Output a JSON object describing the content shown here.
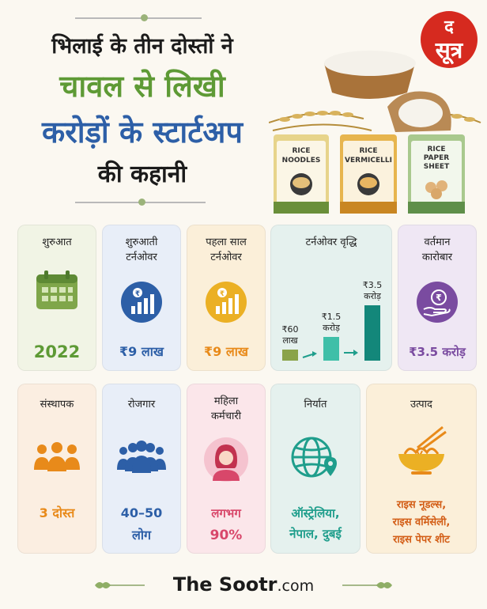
{
  "header": {
    "title_line1": "भिलाई के तीन दोस्तों ने",
    "title_line2": "चावल से लिखी",
    "title_line3": "करोड़ों के स्टार्टअप",
    "title_line4": "की कहानी"
  },
  "logo": {
    "line1": "द",
    "line2": "सूत्र"
  },
  "packs": [
    {
      "line1": "RICE",
      "line2": "NOODLES"
    },
    {
      "line1": "RICE",
      "line2": "VERMICELLI"
    },
    {
      "line1": "RICE",
      "line2": "PAPER",
      "line3": "SHEET"
    }
  ],
  "cards_row1": [
    {
      "title": "शुरुआत",
      "value": "2022",
      "icon": "calendar-icon"
    },
    {
      "title": "शुरुआती",
      "title2": "टर्नओवर",
      "value": "₹9 लाख",
      "icon": "rupee-growth-icon"
    },
    {
      "title": "पहला साल",
      "title2": "टर्नओवर",
      "value": "₹9 लाख",
      "icon": "rupee-growth-icon"
    },
    {
      "title": "टर्नओवर वृद्धि",
      "icon": "growth-bars-icon"
    },
    {
      "title": "वर्तमान",
      "title2": "कारोबार",
      "value": "₹3.5 करोड़",
      "icon": "rupee-hand-icon"
    }
  ],
  "growth": {
    "bars": [
      {
        "label1": "₹60",
        "label2": "लाख",
        "value_lakh": 60
      },
      {
        "label1": "₹1.5",
        "label2": "करोड़",
        "value_lakh": 150
      },
      {
        "label1": "₹3.5",
        "label2": "करोड़",
        "value_lakh": 350
      }
    ]
  },
  "cards_row2": [
    {
      "title": "संस्थापक",
      "value": "3 दोस्त",
      "icon": "people-icon"
    },
    {
      "title": "रोजगार",
      "value": "40–50",
      "value2": "लोग",
      "icon": "team-icon"
    },
    {
      "title": "महिला",
      "title2": "कर्मचारी",
      "value": "लगभग",
      "value2": "90%",
      "icon": "woman-icon"
    },
    {
      "title": "निर्यात",
      "value": "ऑस्ट्रेलिया,",
      "value2": "नेपाल, दुबई",
      "icon": "globe-icon"
    },
    {
      "title": "उत्पाद",
      "value": "राइस नूडल्स,",
      "value2": "राइस वर्मिसेली,",
      "value3": "राइस पेपर शीट",
      "icon": "noodle-bowl-icon"
    }
  ],
  "footer": {
    "brand_main": "The Sootr",
    "brand_suffix": ".com"
  },
  "colors": {
    "green": "#5e9a35",
    "blue": "#2d5fa7",
    "orange": "#e88a1a",
    "teal": "#1f9e8c",
    "purple": "#7a4ba0",
    "pink": "#d8476a"
  }
}
